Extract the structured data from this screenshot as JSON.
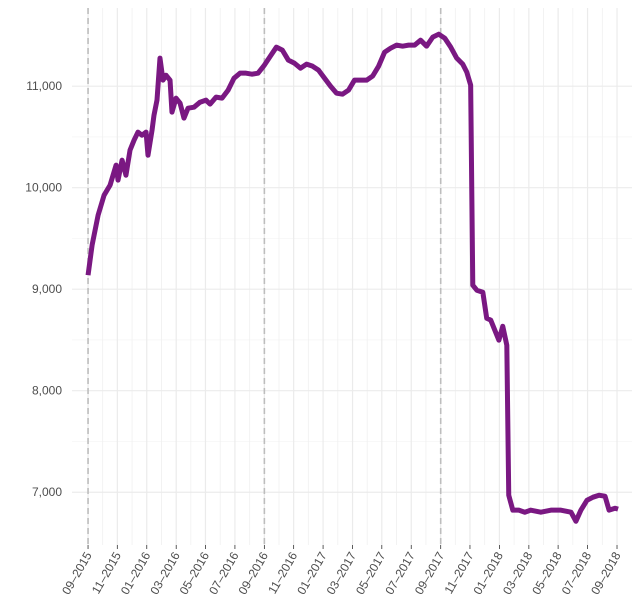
{
  "chart_data": {
    "type": "line",
    "color": "#7a1882",
    "grid": true,
    "xlim": [
      2015.576,
      2018.752
    ],
    "ylim": [
      6480,
      11770
    ],
    "vlines": [
      2015.667,
      2016.667,
      2017.667
    ],
    "yticks": [
      {
        "value": 7000,
        "label": "7,000"
      },
      {
        "value": 8000,
        "label": "8,000"
      },
      {
        "value": 9000,
        "label": "9,000"
      },
      {
        "value": 10000,
        "label": "10,000"
      },
      {
        "value": 11000,
        "label": "11,000"
      }
    ],
    "xticks": [
      {
        "value": 2015.667,
        "label": "09–2015"
      },
      {
        "value": 2015.833,
        "label": "11–2015"
      },
      {
        "value": 2016.0,
        "label": "01–2016"
      },
      {
        "value": 2016.167,
        "label": "03–2016"
      },
      {
        "value": 2016.333,
        "label": "05–2016"
      },
      {
        "value": 2016.5,
        "label": "07–2016"
      },
      {
        "value": 2016.667,
        "label": "09–2016"
      },
      {
        "value": 2016.833,
        "label": "11–2016"
      },
      {
        "value": 2017.0,
        "label": "01–2017"
      },
      {
        "value": 2017.167,
        "label": "03–2017"
      },
      {
        "value": 2017.333,
        "label": "05–2017"
      },
      {
        "value": 2017.5,
        "label": "07–2017"
      },
      {
        "value": 2017.667,
        "label": "09–2017"
      },
      {
        "value": 2017.833,
        "label": "11–2017"
      },
      {
        "value": 2018.0,
        "label": "01–2018"
      },
      {
        "value": 2018.167,
        "label": "03–2018"
      },
      {
        "value": 2018.333,
        "label": "05–2018"
      },
      {
        "value": 2018.5,
        "label": "07–2018"
      },
      {
        "value": 2018.667,
        "label": "09–2018"
      }
    ],
    "x": [
      2015.667,
      2015.69,
      2015.724,
      2015.758,
      2015.792,
      2015.826,
      2015.837,
      2015.86,
      2015.882,
      2015.905,
      2015.928,
      2015.95,
      2015.973,
      2015.996,
      2016.007,
      2016.03,
      2016.041,
      2016.058,
      2016.075,
      2016.092,
      2016.109,
      2016.132,
      2016.143,
      2016.166,
      2016.189,
      2016.211,
      2016.234,
      2016.268,
      2016.302,
      2016.336,
      2016.359,
      2016.393,
      2016.427,
      2016.461,
      2016.495,
      2016.529,
      2016.563,
      2016.597,
      2016.631,
      2016.667,
      2016.701,
      2016.735,
      2016.769,
      2016.803,
      2016.837,
      2016.872,
      2016.906,
      2016.94,
      2016.974,
      2017.008,
      2017.042,
      2017.076,
      2017.11,
      2017.144,
      2017.178,
      2017.212,
      2017.247,
      2017.281,
      2017.315,
      2017.349,
      2017.383,
      2017.417,
      2017.451,
      2017.485,
      2017.519,
      2017.553,
      2017.587,
      2017.622,
      2017.656,
      2017.69,
      2017.724,
      2017.758,
      2017.792,
      2017.815,
      2017.837,
      2017.849,
      2017.872,
      2017.906,
      2017.928,
      2017.951,
      2017.974,
      2017.997,
      2018.019,
      2018.042,
      2018.053,
      2018.076,
      2018.11,
      2018.144,
      2018.178,
      2018.235,
      2018.292,
      2018.349,
      2018.406,
      2018.434,
      2018.462,
      2018.497,
      2018.531,
      2018.565,
      2018.599,
      2018.622,
      2018.656,
      2018.673
    ],
    "values": [
      9138,
      9434,
      9729,
      9926,
      10025,
      10222,
      10074,
      10271,
      10123,
      10369,
      10468,
      10547,
      10517,
      10547,
      10320,
      10567,
      10714,
      10862,
      11276,
      11059,
      11108,
      11059,
      10744,
      10882,
      10832,
      10685,
      10783,
      10793,
      10842,
      10862,
      10823,
      10892,
      10882,
      10960,
      11079,
      11128,
      11128,
      11118,
      11128,
      11207,
      11296,
      11384,
      11355,
      11256,
      11227,
      11177,
      11217,
      11197,
      11158,
      11079,
      11000,
      10931,
      10921,
      10960,
      11059,
      11059,
      11059,
      11099,
      11197,
      11335,
      11374,
      11404,
      11394,
      11404,
      11404,
      11453,
      11394,
      11483,
      11512,
      11473,
      11384,
      11276,
      11217,
      11138,
      11010,
      9039,
      8990,
      8970,
      8714,
      8695,
      8596,
      8498,
      8635,
      8448,
      6970,
      6823,
      6823,
      6803,
      6823,
      6803,
      6823,
      6823,
      6803,
      6714,
      6823,
      6921,
      6951,
      6970,
      6961,
      6823,
      6842,
      6833
    ]
  }
}
